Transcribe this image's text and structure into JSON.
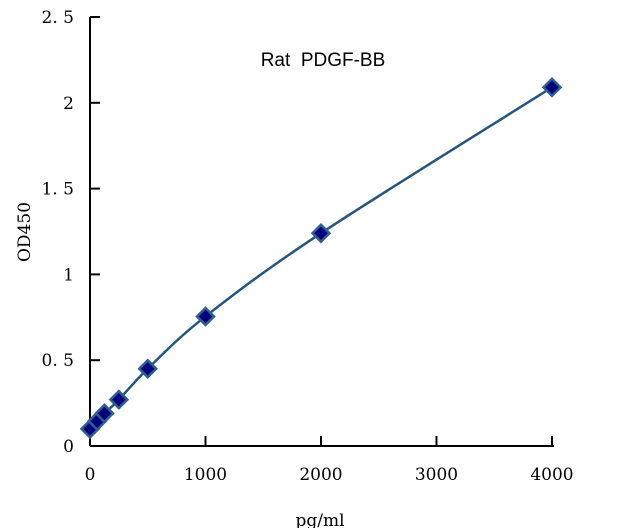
{
  "chart_data": {
    "type": "line",
    "title": "Rat  PDGF-BB",
    "xlabel": "pg/ml",
    "ylabel": "OD450",
    "xlim": [
      0,
      4000
    ],
    "ylim": [
      0,
      2.5
    ],
    "xticks": [
      "0",
      "1000",
      "2000",
      "3000",
      "4000"
    ],
    "yticks": [
      "0",
      "0. 5",
      "1",
      "1. 5",
      "2",
      "2. 5"
    ],
    "grid": false,
    "series": [
      {
        "x": [
          0,
          62.5,
          125,
          250,
          500,
          1000,
          2000,
          4000
        ],
        "y": [
          0.1,
          0.145,
          0.19,
          0.27,
          0.45,
          0.755,
          1.24,
          2.09
        ]
      }
    ],
    "colors": {
      "line": "#23557f",
      "marker_fill": "#00007f",
      "marker_edge": "#2f5f8f"
    }
  }
}
